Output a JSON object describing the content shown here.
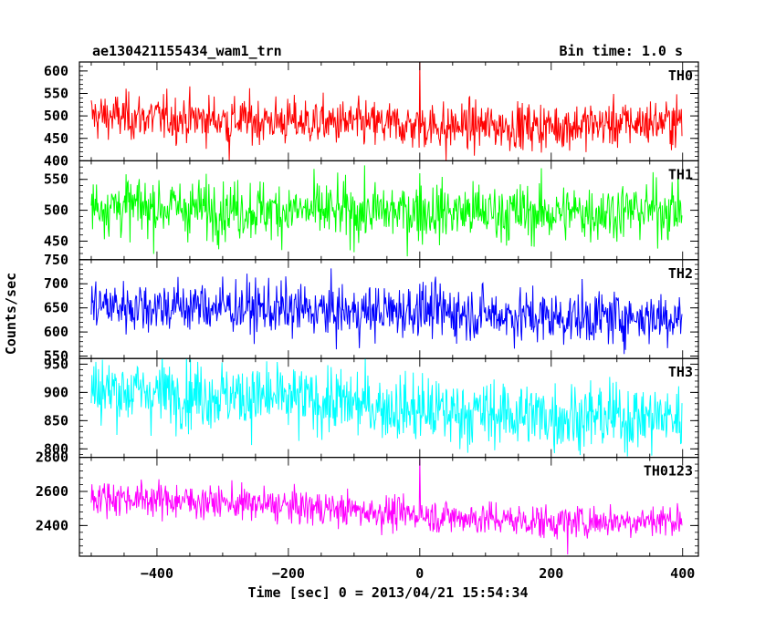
{
  "header": {
    "left_title": "ae130421155434_wam1_trn",
    "right_title": "Bin time: 1.0 s"
  },
  "xlabel": "Time [sec] 0 = 2013/04/21 15:54:34",
  "ylabel": "Counts/sec",
  "chart_data": {
    "type": "line",
    "style": "stacked panels, shared x axis, noisy 1 s binned light curves",
    "x": {
      "start": -500,
      "end": 399,
      "step": 1,
      "range": [
        -518,
        424
      ],
      "ticks": [
        -400,
        -200,
        0,
        200,
        400
      ],
      "tick_labels": [
        "−400",
        "−200",
        "0",
        "200",
        "400"
      ]
    },
    "series": [
      {
        "name": "TH0",
        "color": "#ff0000",
        "ylim": [
          400,
          620
        ],
        "yticks": [
          400,
          450,
          500,
          550,
          600
        ],
        "ytick_labels": [
          "400",
          "450",
          "500",
          "550",
          "600"
        ],
        "trend": {
          "x": [
            -500,
            -300,
            -100,
            0,
            200,
            400
          ],
          "y": [
            500,
            492,
            483,
            478,
            477,
            488
          ]
        },
        "noise_sd": 26,
        "peak": {
          "x": 0,
          "y": 620
        },
        "dips": [
          {
            "x": -290,
            "y": 398
          },
          {
            "x": 40,
            "y": 400
          }
        ]
      },
      {
        "name": "TH1",
        "color": "#00ff00",
        "ylim": [
          420,
          580
        ],
        "yticks": [
          450,
          500,
          550
        ],
        "ytick_labels": [
          "450",
          "500",
          "550"
        ],
        "trend": {
          "x": [
            -500,
            -300,
            -100,
            0,
            200,
            400
          ],
          "y": [
            508,
            502,
            497,
            498,
            495,
            502
          ]
        },
        "noise_sd": 24,
        "peak": {
          "x": 0,
          "y": 560
        },
        "dips": []
      },
      {
        "name": "TH2",
        "color": "#0000ff",
        "ylim": [
          545,
          750
        ],
        "yticks": [
          550,
          600,
          650,
          700,
          750
        ],
        "ytick_labels": [
          "550",
          "600",
          "650",
          "700",
          "750"
        ],
        "trend": {
          "x": [
            -500,
            -300,
            -100,
            0,
            200,
            400
          ],
          "y": [
            655,
            652,
            640,
            645,
            630,
            632
          ]
        },
        "noise_sd": 28,
        "peak": {
          "x": 0,
          "y": 700
        },
        "dips": []
      },
      {
        "name": "TH3",
        "color": "#00ffff",
        "ylim": [
          785,
          960
        ],
        "yticks": [
          800,
          850,
          900,
          950
        ],
        "ytick_labels": [
          "800",
          "850",
          "900",
          "950"
        ],
        "trend": {
          "x": [
            -500,
            -300,
            -100,
            0,
            200,
            400
          ],
          "y": [
            905,
            895,
            880,
            868,
            858,
            855
          ]
        },
        "noise_sd": 30,
        "peak": null,
        "dips": []
      },
      {
        "name": "TH0123",
        "color": "#ff00ff",
        "ylim": [
          2220,
          2800
        ],
        "yticks": [
          2400,
          2600,
          2800
        ],
        "ytick_labels": [
          "2400",
          "2600",
          "2800"
        ],
        "trend": {
          "x": [
            -500,
            -300,
            -100,
            0,
            200,
            400
          ],
          "y": [
            2570,
            2535,
            2490,
            2460,
            2420,
            2435
          ]
        },
        "noise_sd": 50,
        "peak": {
          "x": 0,
          "y": 2790
        },
        "dips": [
          {
            "x": 225,
            "y": 2230
          }
        ]
      }
    ]
  }
}
